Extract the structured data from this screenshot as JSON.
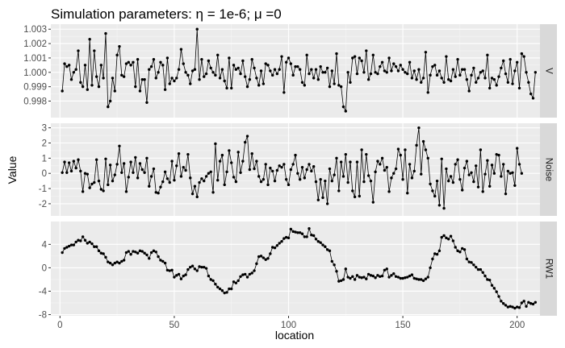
{
  "chart_data": {
    "type": "line",
    "title": "Simulation parameters:  η = 1e-6; μ =0",
    "xlabel": "location",
    "ylabel": "Value",
    "xlim": [
      -4,
      210
    ],
    "x_ticks": [
      0,
      50,
      100,
      150,
      200
    ],
    "x_tick_labels": [
      "0",
      "50",
      "100",
      "150",
      "200"
    ],
    "grid": true,
    "panels": [
      {
        "strip": "V",
        "ylim": [
          0.99685,
          1.00335
        ],
        "y_ticks": [
          0.998,
          0.999,
          1.0,
          1.001,
          1.002,
          1.003
        ],
        "y_tick_labels": [
          "0.998",
          "0.999",
          "1.000",
          "1.001",
          "1.002",
          "1.003"
        ],
        "values": [
          0.9987,
          1.0006,
          1.0004,
          1.0005,
          0.9995,
          1.0,
          1.0002,
          1.0015,
          0.9993,
          0.999,
          1.0005,
          0.9988,
          1.0023,
          0.9991,
          1.0015,
          0.9997,
          0.999,
          1.0005,
          0.9996,
          1.0027,
          0.9976,
          0.998,
          0.9996,
          0.9987,
          1.0012,
          1.0018,
          0.9998,
          0.9997,
          1.0006,
          1.0007,
          1.0005,
          1.0007,
          0.999,
          1.0009,
          0.9987,
          0.9995,
          0.9995,
          0.9979,
          1.0002,
          1.0004,
          1.0009,
          0.9996,
          1.0,
          1.0007,
          1.0005,
          0.9988,
          1.001,
          0.9992,
          0.9996,
          0.9994,
          0.9996,
          1.0002,
          1.0016,
          1.0006,
          1.0,
          0.9998,
          0.9992,
          1.0001,
          1.0002,
          1.003,
          0.9995,
          1.0009,
          0.9997,
          0.9999,
          1.0008,
          1.0003,
          1.0,
          0.9998,
          1.0012,
          0.9996,
          1.0002,
          0.9994,
          0.9989,
          1.001,
          0.9989,
          1.0005,
          1.0002,
          1.0003,
          0.9999,
          1.0008,
          0.9997,
          0.999,
          0.9995,
          1.0009,
          1.0003,
          0.9996,
          0.9991,
          1.0001,
          0.9992,
          1.0006,
          1.0005,
          1.0001,
          0.9998,
          1.0002,
          0.9999,
          1.0002,
          1.0011,
          0.9986,
          1.0007,
          1.001,
          1.0006,
          0.9998,
          1.0004,
          1.0004,
          1.0002,
          0.9993,
          0.9991,
          1.0012,
          0.9999,
          1.0002,
          0.9996,
          1.0002,
          0.9995,
          1.0004,
          1.0,
          1.0,
          1.0003,
          0.999,
          1.0001,
          0.9992,
          1.0013,
          0.9991,
          0.999,
          0.9976,
          0.9973,
          1.0,
          0.9993,
          1.001,
          1.0011,
          0.9999,
          1.001,
          1.0008,
          1.0,
          1.0015,
          0.9995,
          0.9999,
          1.0012,
          1.0,
          0.9999,
          1.0004,
          1.0007,
          1.0001,
          1.0,
          1.001,
          1.0001,
          1.0006,
          1.0004,
          1.0001,
          1.0005,
          1.0002,
          1.0,
          0.9999,
          1.0007,
          0.9996,
          1.0001,
          0.9995,
          1.0002,
          0.9993,
          0.9996,
          1.0014,
          0.9986,
          0.9998,
          1.0004,
          1.0005,
          0.9998,
          1.0001,
          0.9996,
          0.9993,
          1.0011,
          0.9995,
          0.9994,
          1.0002,
          0.9997,
          1.0009,
          0.9998,
          1.0002,
          1.0002,
          0.9995,
          0.9987,
          0.9998,
          1.0003,
          0.9993,
          0.9996,
          1.0,
          1.0001,
          0.9996,
          1.0012,
          0.9989,
          0.9996,
          0.9995,
          0.9991,
          0.9997,
          1.0003,
          1.0008,
          0.9999,
          0.9993,
          1.0009,
          0.9992,
          1.0001,
          1.0007,
          0.9989,
          1.0013,
          1.0011,
          1.0,
          0.9993,
          0.9985,
          0.9982,
          1.0
        ]
      },
      {
        "strip": "Noise",
        "ylim": [
          -2.8,
          3.3
        ],
        "y_ticks": [
          -2,
          -1,
          0,
          1,
          2,
          3
        ],
        "y_tick_labels": [
          "-2",
          "-1",
          "0",
          "1",
          "2",
          "3"
        ],
        "values": [
          0.05,
          0.75,
          0.05,
          0.7,
          0.15,
          0.8,
          0.35,
          0.9,
          0.15,
          -1.2,
          0.0,
          -0.05,
          -0.95,
          -0.7,
          -0.6,
          0.9,
          -0.5,
          -1.05,
          -1.15,
          0.95,
          -0.75,
          0.55,
          -0.5,
          -0.1,
          0.6,
          1.8,
          0.05,
          0.65,
          -1.2,
          -0.25,
          0.75,
          0.05,
          1.05,
          -0.3,
          0.65,
          0.25,
          0.05,
          1.0,
          -0.85,
          -0.2,
          0.3,
          -1.25,
          -1.3,
          -0.9,
          -0.55,
          0.1,
          -0.35,
          -0.6,
          0.8,
          -0.45,
          0.5,
          1.3,
          -0.2,
          0.4,
          0.2,
          1.25,
          -0.3,
          -1.35,
          -0.85,
          -1.55,
          -0.6,
          -0.35,
          -0.5,
          -0.2,
          0.0,
          0.1,
          -1.25,
          1.95,
          -0.45,
          0.8,
          1.2,
          -0.75,
          0.1,
          1.5,
          0.7,
          -0.25,
          -0.55,
          1.4,
          0.05,
          0.8,
          2.05,
          2.45,
          0.25,
          1.3,
          0.3,
          0.8,
          -0.2,
          -0.55,
          -0.4,
          0.6,
          -0.75,
          0.35,
          0.15,
          -0.5,
          0.2,
          0.5,
          0.4,
          0.6,
          -0.4,
          -0.75,
          0.25,
          0.6,
          1.2,
          0.0,
          -0.4,
          0.4,
          -0.3,
          0.25,
          0.6,
          0.15,
          0.45,
          -0.55,
          -1.75,
          -0.4,
          -1.6,
          -0.5,
          -2.0,
          0.3,
          -0.5,
          -0.1,
          1.0,
          -1.15,
          0.75,
          -0.2,
          1.25,
          -0.6,
          0.75,
          -1.15,
          -1.55,
          0.75,
          -1.5,
          1.55,
          -0.55,
          1.25,
          -0.15,
          -0.5,
          -1.9,
          0.1,
          0.8,
          0.6,
          1.0,
          0.2,
          0.4,
          -1.2,
          -0.3,
          0.0,
          0.3,
          1.6,
          1.2,
          -0.4,
          1.55,
          -1.3,
          0.6,
          -0.3,
          0.15,
          1.85,
          3.0,
          -0.05,
          2.1,
          1.55,
          1.0,
          -0.7,
          -1.15,
          -1.5,
          -0.5,
          -2.1,
          0.95,
          -2.3,
          0.3,
          -0.5,
          -0.2,
          -0.6,
          0.6,
          0.9,
          -0.4,
          -1.1,
          0.35,
          0.8,
          -0.1,
          0.05,
          -0.55,
          0.5,
          -0.9,
          1.55,
          -1.2,
          -0.05,
          0.85,
          -0.85,
          0.55,
          0.0,
          1.25,
          1.2,
          -0.2,
          0.6,
          -1.35,
          0.15,
          0.0,
          0.05,
          -0.8,
          1.65,
          0.6,
          0.0
        ]
      },
      {
        "strip": "RW1",
        "ylim": [
          -8.2,
          7.9
        ],
        "y_ticks": [
          -8,
          -4,
          0,
          4
        ],
        "y_tick_labels": [
          "-8",
          "-4",
          "0",
          "4"
        ],
        "values": [
          2.6,
          3.3,
          3.5,
          3.7,
          3.9,
          3.9,
          4.4,
          4.7,
          4.6,
          5.3,
          4.7,
          4.2,
          4.4,
          4.1,
          3.6,
          3.6,
          2.9,
          2.5,
          2.4,
          1.8,
          1.0,
          0.8,
          0.5,
          0.8,
          1.0,
          0.8,
          1.1,
          1.3,
          2.6,
          2.8,
          2.3,
          2.8,
          2.7,
          2.5,
          2.9,
          2.8,
          2.5,
          2.2,
          1.6,
          2.6,
          2.9,
          2.7,
          1.9,
          1.3,
          1.1,
          0.8,
          -0.4,
          -0.5,
          -0.4,
          -1.6,
          -1.3,
          -1.1,
          -1.9,
          -1.4,
          -1.2,
          -0.3,
          0.1,
          0.3,
          -0.2,
          -0.5,
          0.2,
          0.1,
          0.1,
          -0.1,
          -1.4,
          -2.0,
          -2.2,
          -2.8,
          -3.3,
          -3.6,
          -3.9,
          -4.3,
          -4.2,
          -3.6,
          -3.6,
          -2.4,
          -2.6,
          -2.2,
          -1.5,
          -1.2,
          -1.1,
          -1.6,
          -1.1,
          -0.9,
          -0.5,
          0.7,
          1.9,
          2.0,
          1.7,
          1.4,
          1.6,
          2.4,
          3.5,
          3.4,
          3.8,
          4.2,
          4.5,
          5.0,
          5.2,
          5.1,
          6.6,
          6.2,
          6.1,
          6.0,
          6.0,
          5.8,
          5.3,
          5.3,
          6.7,
          5.6,
          5.5,
          4.9,
          4.5,
          4.3,
          3.9,
          3.6,
          3.1,
          2.9,
          1.1,
          0.5,
          -0.6,
          -2.3,
          -2.2,
          -2.0,
          -0.2,
          -1.6,
          -1.8,
          -1.5,
          -2.0,
          -1.3,
          -1.6,
          -1.7,
          -1.6,
          -1.9,
          -1.1,
          -1.3,
          -1.4,
          -1.7,
          -1.3,
          -1.5,
          -1.4,
          -0.4,
          -0.2,
          -1.6,
          -1.3,
          -1.0,
          -1.5,
          -1.6,
          -1.8,
          -1.8,
          -1.7,
          -1.6,
          -1.4,
          -1.2,
          -1.8,
          -1.9,
          -2.0,
          -2.0,
          -2.2,
          -1.9,
          -1.6,
          0.0,
          1.5,
          2.4,
          2.3,
          2.9,
          5.2,
          5.5,
          5.1,
          4.9,
          5.4,
          4.6,
          3.5,
          2.9,
          2.7,
          3.3,
          3.1,
          1.5,
          1.0,
          0.9,
          0.5,
          0.1,
          -0.3,
          -0.3,
          -0.8,
          -1.4,
          -2.0,
          -2.1,
          -3.0,
          -3.5,
          -4.1,
          -4.9,
          -5.7,
          -6.1,
          -6.4,
          -6.7,
          -6.6,
          -6.7,
          -6.9,
          -6.7,
          -6.8,
          -6.0,
          -5.7,
          -6.6,
          -5.9,
          -6.1,
          -6.2,
          -5.9
        ]
      }
    ]
  }
}
